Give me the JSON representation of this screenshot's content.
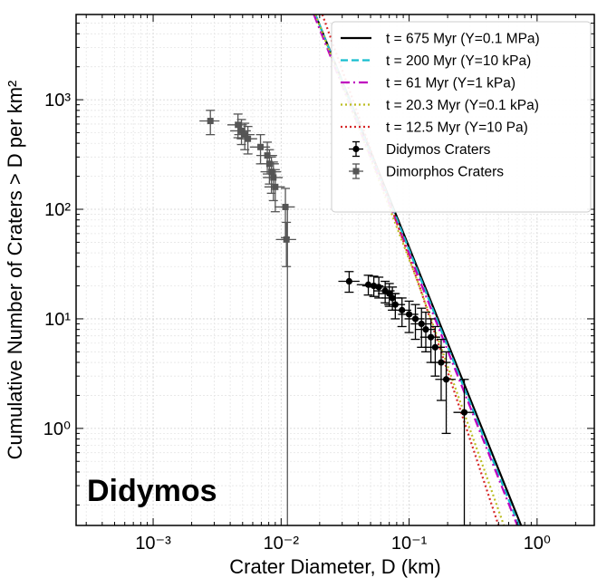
{
  "chart_data": {
    "type": "scatter",
    "xlabel": "Crater Diameter, D (km)",
    "ylabel": "Cumulative Number of Craters > D per km²",
    "annotation": "Didymos",
    "x_scale": "log",
    "y_scale": "log",
    "xlim": [
      0.00025,
      2.8
    ],
    "ylim": [
      0.13,
      6000
    ],
    "grid": true,
    "legend_position": "top-right",
    "x_ticks": [
      {
        "value": 0.001,
        "label": "10⁻³"
      },
      {
        "value": 0.01,
        "label": "10⁻²"
      },
      {
        "value": 0.1,
        "label": "10⁻¹"
      },
      {
        "value": 1,
        "label": "10⁰"
      }
    ],
    "y_ticks": [
      {
        "value": 1,
        "label": "10⁰"
      },
      {
        "value": 10,
        "label": "10¹"
      },
      {
        "value": 100,
        "label": "10²"
      },
      {
        "value": 1000,
        "label": "10³"
      }
    ],
    "series": [
      {
        "name": "t = 675 Myr (Y=0.1 MPa)",
        "kind": "line",
        "color": "#000000",
        "dash": "solid",
        "x": [
          0.0185,
          0.75
        ],
        "y": [
          6000,
          0.13
        ]
      },
      {
        "name": "t = 200 Myr (Y=10 kPa)",
        "kind": "line",
        "color": "#17becf",
        "dash": "dashed",
        "x": [
          0.0185,
          0.72
        ],
        "y": [
          6000,
          0.13
        ]
      },
      {
        "name": "t = 61 Myr (Y=1 kPa)",
        "kind": "line",
        "color": "#bf00bf",
        "dash": "dashdot",
        "x": [
          0.018,
          0.7
        ],
        "y": [
          6000,
          0.13
        ]
      },
      {
        "name": "t = 20.3 Myr (Y=0.1 kPa)",
        "kind": "line",
        "color": "#bcbd22",
        "dash": "dotted",
        "x": [
          0.0185,
          0.12,
          0.55
        ],
        "y": [
          6000,
          20,
          0.13
        ]
      },
      {
        "name": "t = 12.5 Myr (Y=10 Pa)",
        "kind": "line",
        "color": "#d62728",
        "dash": "dotted",
        "x": [
          0.021,
          0.12,
          0.5
        ],
        "y": [
          6000,
          20,
          0.13
        ]
      },
      {
        "name": "Didymos Craters",
        "kind": "points",
        "marker": "circle",
        "color": "#000000",
        "points": [
          {
            "x": 0.034,
            "y": 22,
            "ylo": 17.5,
            "yhi": 27,
            "xlo": 0.028,
            "xhi": 0.041
          },
          {
            "x": 0.048,
            "y": 20.5,
            "ylo": 16.5,
            "yhi": 25,
            "xlo": 0.039,
            "xhi": 0.058
          },
          {
            "x": 0.053,
            "y": 20,
            "ylo": 16,
            "yhi": 24.5,
            "xlo": 0.043,
            "xhi": 0.063
          },
          {
            "x": 0.058,
            "y": 19.5,
            "ylo": 15.5,
            "yhi": 24,
            "xlo": 0.047,
            "xhi": 0.069
          },
          {
            "x": 0.065,
            "y": 18,
            "ylo": 14,
            "yhi": 22,
            "xlo": 0.053,
            "xhi": 0.077
          },
          {
            "x": 0.07,
            "y": 17,
            "ylo": 13,
            "yhi": 21,
            "xlo": 0.057,
            "xhi": 0.083
          },
          {
            "x": 0.074,
            "y": 15.5,
            "ylo": 12,
            "yhi": 19.5,
            "xlo": 0.061,
            "xhi": 0.088
          },
          {
            "x": 0.078,
            "y": 13.5,
            "ylo": 10,
            "yhi": 17,
            "xlo": 0.064,
            "xhi": 0.093
          },
          {
            "x": 0.088,
            "y": 12,
            "ylo": 8.5,
            "yhi": 15.5,
            "xlo": 0.072,
            "xhi": 0.104
          },
          {
            "x": 0.1,
            "y": 11,
            "ylo": 7.5,
            "yhi": 14.5,
            "xlo": 0.082,
            "xhi": 0.118
          },
          {
            "x": 0.112,
            "y": 10,
            "ylo": 6.5,
            "yhi": 13.5,
            "xlo": 0.092,
            "xhi": 0.132
          },
          {
            "x": 0.125,
            "y": 9,
            "ylo": 5.5,
            "yhi": 12.5,
            "xlo": 0.103,
            "xhi": 0.148
          },
          {
            "x": 0.135,
            "y": 8,
            "ylo": 5,
            "yhi": 11.5,
            "xlo": 0.111,
            "xhi": 0.16
          },
          {
            "x": 0.148,
            "y": 6.8,
            "ylo": 4,
            "yhi": 10,
            "xlo": 0.122,
            "xhi": 0.175
          },
          {
            "x": 0.16,
            "y": 5.5,
            "ylo": 3,
            "yhi": 8.5,
            "xlo": 0.131,
            "xhi": 0.19
          },
          {
            "x": 0.178,
            "y": 4,
            "ylo": 1.8,
            "yhi": 6.5,
            "xlo": 0.146,
            "xhi": 0.211
          },
          {
            "x": 0.195,
            "y": 2.8,
            "ylo": 0.9,
            "yhi": 5,
            "xlo": 0.16,
            "xhi": 0.231
          },
          {
            "x": 0.27,
            "y": 1.4,
            "ylo": 0.13,
            "yhi": 2.8,
            "xlo": 0.222,
            "xhi": 0.32
          }
        ]
      },
      {
        "name": "Dimorphos Craters",
        "kind": "points",
        "marker": "square",
        "color": "#555555",
        "points": [
          {
            "x": 0.0028,
            "y": 640,
            "ylo": 480,
            "yhi": 800,
            "xlo": 0.0023,
            "xhi": 0.0033
          },
          {
            "x": 0.0046,
            "y": 590,
            "ylo": 450,
            "yhi": 740,
            "xlo": 0.0038,
            "xhi": 0.0054
          },
          {
            "x": 0.0049,
            "y": 520,
            "ylo": 390,
            "yhi": 660,
            "xlo": 0.004,
            "xhi": 0.0058
          },
          {
            "x": 0.0052,
            "y": 480,
            "ylo": 350,
            "yhi": 610,
            "xlo": 0.0043,
            "xhi": 0.0062
          },
          {
            "x": 0.0055,
            "y": 440,
            "ylo": 320,
            "yhi": 570,
            "xlo": 0.0045,
            "xhi": 0.0065
          },
          {
            "x": 0.0069,
            "y": 370,
            "ylo": 260,
            "yhi": 480,
            "xlo": 0.0057,
            "xhi": 0.0082
          },
          {
            "x": 0.0078,
            "y": 310,
            "ylo": 210,
            "yhi": 410,
            "xlo": 0.0064,
            "xhi": 0.0093
          },
          {
            "x": 0.0081,
            "y": 260,
            "ylo": 170,
            "yhi": 350,
            "xlo": 0.0067,
            "xhi": 0.0096
          },
          {
            "x": 0.0084,
            "y": 220,
            "ylo": 140,
            "yhi": 300,
            "xlo": 0.0069,
            "xhi": 0.01
          },
          {
            "x": 0.0087,
            "y": 195,
            "ylo": 120,
            "yhi": 270,
            "xlo": 0.0072,
            "xhi": 0.0103
          },
          {
            "x": 0.009,
            "y": 160,
            "ylo": 95,
            "yhi": 230,
            "xlo": 0.0074,
            "xhi": 0.0107
          },
          {
            "x": 0.0108,
            "y": 105,
            "ylo": 55,
            "yhi": 155,
            "xlo": 0.0089,
            "xhi": 0.0128
          },
          {
            "x": 0.011,
            "y": 53,
            "ylo": 30,
            "yhi": 76,
            "xlo": 0.0091,
            "xhi": 0.0131
          }
        ],
        "long_lower_bar": {
          "x": 0.0112,
          "y_from": 100,
          "y_to": 0.13
        }
      }
    ]
  }
}
